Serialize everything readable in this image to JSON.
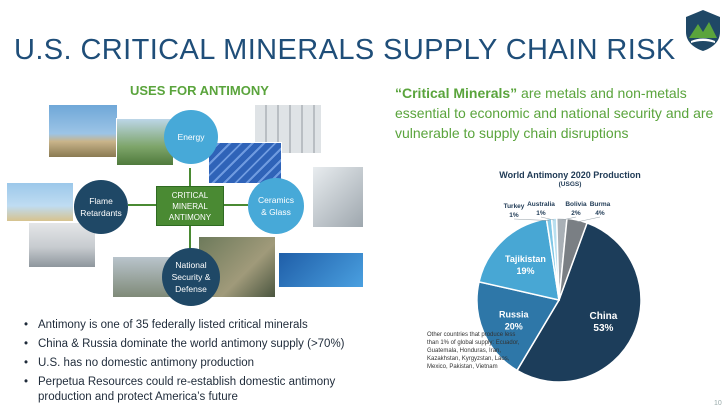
{
  "slide": {
    "title": "U.S. CRITICAL MINERALS SUPPLY CHAIN RISK",
    "page_number": "10"
  },
  "uses": {
    "heading": "USES FOR ANTIMONY",
    "center_line1": "CRITICAL",
    "center_line2": "MINERAL",
    "center_line3": "ANTIMONY",
    "energy": "Energy",
    "flame_line1": "Flame",
    "flame_line2": "Retardants",
    "ceramics_line1": "Ceramics",
    "ceramics_line2": "& Glass",
    "defense_line1": "National",
    "defense_line2": "Security &",
    "defense_line3": "Defense"
  },
  "definition": {
    "term": "“Critical Minerals”",
    "text": " are metals and non-metals essential to economic and national security and are vulnerable to supply chain disruptions"
  },
  "bullets": [
    "Antimony is one of 35 federally listed critical minerals",
    "China & Russia dominate the world antimony supply (>70%)",
    "U.S. has no domestic antimony production",
    "Perpetua Resources could re-establish domestic antimony production and protect America’s future"
  ],
  "colors": {
    "title": "#1f4e79",
    "accent_green": "#5aa43c",
    "circle_blue": "#47a9d8",
    "circle_navy": "#1f4866"
  },
  "chart_data": {
    "type": "pie",
    "title": "World Antimony 2020 Production",
    "subtitle": "(USGS)",
    "slices": [
      {
        "label": "China",
        "value": 53,
        "display": "53%",
        "color": "#1c3d5a"
      },
      {
        "label": "Russia",
        "value": 20,
        "display": "20%",
        "color": "#2e77a8"
      },
      {
        "label": "Tajikistan",
        "value": 19,
        "display": "19%",
        "color": "#48a7d4"
      },
      {
        "label": "Turkey",
        "value": 1,
        "display": "1%",
        "color": "#7fc7e6"
      },
      {
        "label": "Australia",
        "value": 1,
        "display": "1%",
        "color": "#b9dfef"
      },
      {
        "label": "Bolivia",
        "value": 2,
        "display": "2%",
        "color": "#a9b0b6"
      },
      {
        "label": "Burma",
        "value": 4,
        "display": "4%",
        "color": "#7a7f84"
      }
    ],
    "other_note": "Other countries that produce less than 1% of global supply: Ecuador, Guatemala, Honduras, Iran, Kazakhstan, Kyrgyzstan, Laos, Mexico, Pakistan, Vietnam"
  }
}
